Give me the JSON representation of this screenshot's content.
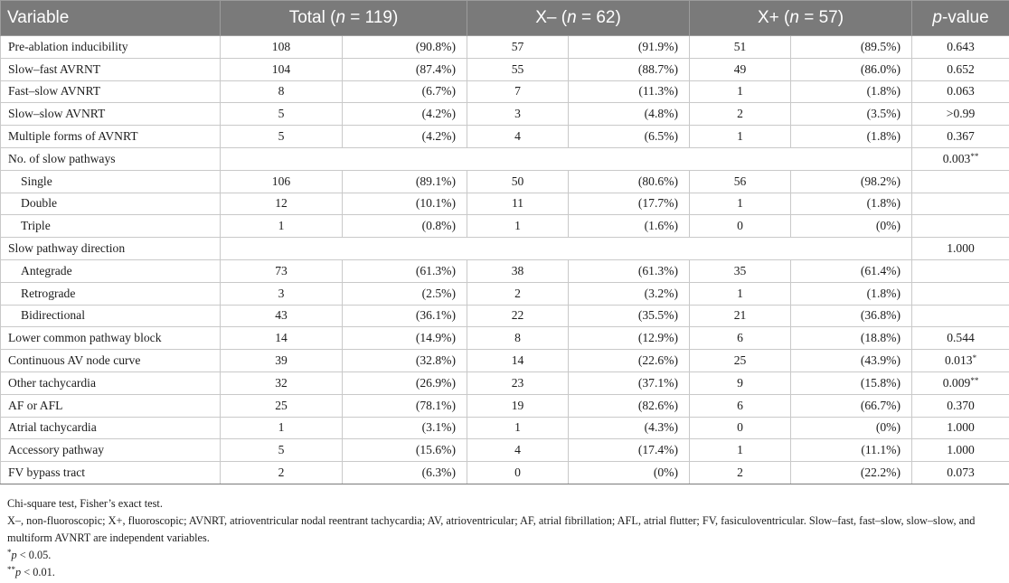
{
  "header": {
    "variable": "Variable",
    "total_prefix": "Total (",
    "total_n": "n",
    "total_suffix": " = 119)",
    "xminus_prefix": "X– (",
    "xminus_n": "n",
    "xminus_suffix": " = 62)",
    "xplus_prefix": "X+ (",
    "xplus_n": "n",
    "xplus_suffix": " = 57)",
    "p_italic": "p",
    "p_suffix": "-value"
  },
  "rows": [
    {
      "label": "Pre-ablation inducibility",
      "total_n": "108",
      "total_pct": "(90.8%)",
      "xm_n": "57",
      "xm_pct": "(91.9%)",
      "xp_n": "51",
      "xp_pct": "(89.5%)",
      "p": "0.643",
      "p_sig": ""
    },
    {
      "label": "Slow–fast AVRNT",
      "total_n": "104",
      "total_pct": "(87.4%)",
      "xm_n": "55",
      "xm_pct": "(88.7%)",
      "xp_n": "49",
      "xp_pct": "(86.0%)",
      "p": "0.652",
      "p_sig": ""
    },
    {
      "label": "Fast–slow AVNRT",
      "total_n": "8",
      "total_pct": "(6.7%)",
      "xm_n": "7",
      "xm_pct": "(11.3%)",
      "xp_n": "1",
      "xp_pct": "(1.8%)",
      "p": "0.063",
      "p_sig": ""
    },
    {
      "label": "Slow–slow AVNRT",
      "total_n": "5",
      "total_pct": "(4.2%)",
      "xm_n": "3",
      "xm_pct": "(4.8%)",
      "xp_n": "2",
      "xp_pct": "(3.5%)",
      "p": ">0.99",
      "p_sig": ""
    },
    {
      "label": "Multiple forms of AVNRT",
      "total_n": "5",
      "total_pct": "(4.2%)",
      "xm_n": "4",
      "xm_pct": "(6.5%)",
      "xp_n": "1",
      "xp_pct": "(1.8%)",
      "p": "0.367",
      "p_sig": ""
    },
    {
      "label": "No. of slow pathways",
      "group": true,
      "p": "0.003",
      "p_sig": "**"
    },
    {
      "label": "Single",
      "indent": true,
      "total_n": "106",
      "total_pct": "(89.1%)",
      "xm_n": "50",
      "xm_pct": "(80.6%)",
      "xp_n": "56",
      "xp_pct": "(98.2%)",
      "p": "",
      "p_sig": ""
    },
    {
      "label": "Double",
      "indent": true,
      "total_n": "12",
      "total_pct": "(10.1%)",
      "xm_n": "11",
      "xm_pct": "(17.7%)",
      "xp_n": "1",
      "xp_pct": "(1.8%)",
      "p": "",
      "p_sig": ""
    },
    {
      "label": "Triple",
      "indent": true,
      "total_n": "1",
      "total_pct": "(0.8%)",
      "xm_n": "1",
      "xm_pct": "(1.6%)",
      "xp_n": "0",
      "xp_pct": "(0%)",
      "p": "",
      "p_sig": ""
    },
    {
      "label": "Slow pathway direction",
      "group": true,
      "p": "1.000",
      "p_sig": ""
    },
    {
      "label": "Antegrade",
      "indent": true,
      "total_n": "73",
      "total_pct": "(61.3%)",
      "xm_n": "38",
      "xm_pct": "(61.3%)",
      "xp_n": "35",
      "xp_pct": "(61.4%)",
      "p": "",
      "p_sig": ""
    },
    {
      "label": "Retrograde",
      "indent": true,
      "total_n": "3",
      "total_pct": "(2.5%)",
      "xm_n": "2",
      "xm_pct": "(3.2%)",
      "xp_n": "1",
      "xp_pct": "(1.8%)",
      "p": "",
      "p_sig": ""
    },
    {
      "label": "Bidirectional",
      "indent": true,
      "total_n": "43",
      "total_pct": "(36.1%)",
      "xm_n": "22",
      "xm_pct": "(35.5%)",
      "xp_n": "21",
      "xp_pct": "(36.8%)",
      "p": "",
      "p_sig": ""
    },
    {
      "label": "Lower common pathway block",
      "total_n": "14",
      "total_pct": "(14.9%)",
      "xm_n": "8",
      "xm_pct": "(12.9%)",
      "xp_n": "6",
      "xp_pct": "(18.8%)",
      "p": "0.544",
      "p_sig": ""
    },
    {
      "label": "Continuous AV node curve",
      "total_n": "39",
      "total_pct": "(32.8%)",
      "xm_n": "14",
      "xm_pct": "(22.6%)",
      "xp_n": "25",
      "xp_pct": "(43.9%)",
      "p": "0.013",
      "p_sig": "*"
    },
    {
      "label": "Other tachycardia",
      "total_n": "32",
      "total_pct": "(26.9%)",
      "xm_n": "23",
      "xm_pct": "(37.1%)",
      "xp_n": "9",
      "xp_pct": "(15.8%)",
      "p": "0.009",
      "p_sig": "**"
    },
    {
      "label": "AF or AFL",
      "total_n": "25",
      "total_pct": "(78.1%)",
      "xm_n": "19",
      "xm_pct": "(82.6%)",
      "xp_n": "6",
      "xp_pct": "(66.7%)",
      "p": "0.370",
      "p_sig": ""
    },
    {
      "label": "Atrial tachycardia",
      "total_n": "1",
      "total_pct": "(3.1%)",
      "xm_n": "1",
      "xm_pct": "(4.3%)",
      "xp_n": "0",
      "xp_pct": "(0%)",
      "p": "1.000",
      "p_sig": ""
    },
    {
      "label": "Accessory pathway",
      "total_n": "5",
      "total_pct": "(15.6%)",
      "xm_n": "4",
      "xm_pct": "(17.4%)",
      "xp_n": "1",
      "xp_pct": "(11.1%)",
      "p": "1.000",
      "p_sig": ""
    },
    {
      "label": "FV bypass tract",
      "total_n": "2",
      "total_pct": "(6.3%)",
      "xm_n": "0",
      "xm_pct": "(0%)",
      "xp_n": "2",
      "xp_pct": "(22.2%)",
      "p": "0.073",
      "p_sig": ""
    }
  ],
  "footnotes": {
    "tests": "Chi-square test, Fisher’s exact test.",
    "abbreviations": "X–, non-fluoroscopic; X+, fluoroscopic; AVNRT, atrioventricular nodal reentrant tachycardia; AV, atrioventricular; AF, atrial fibrillation; AFL, atrial flutter; FV, fasiculoventricular. Slow–fast, fast–slow, slow–slow, and multiform AVNRT are independent variables.",
    "sig1_mark": "*",
    "sig1_p": "p",
    "sig1_text": " < 0.05.",
    "sig2_mark": "**",
    "sig2_p": "p",
    "sig2_text": " < 0.01."
  }
}
